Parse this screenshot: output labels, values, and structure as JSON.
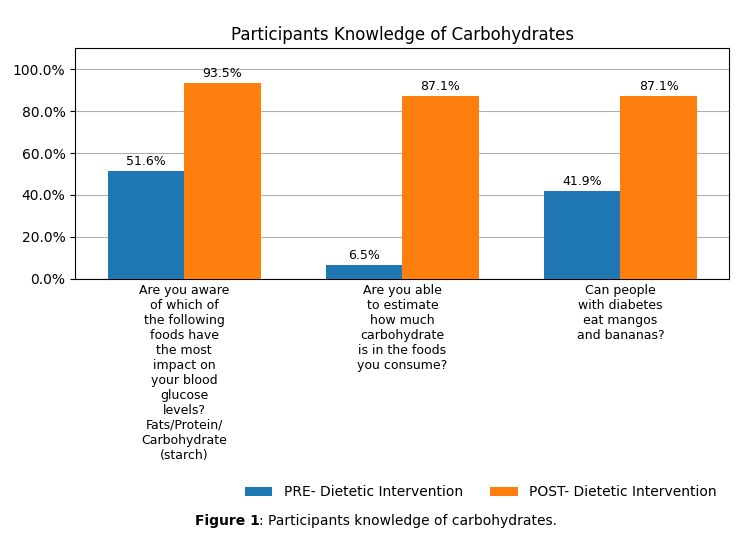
{
  "chart_data": {
    "type": "bar",
    "title": "Participants Knowledge of Carbohydrates",
    "categories": [
      "Are you aware\nof which of\nthe following\nfoods have\nthe most\nimpact on\nyour blood\nglucose\nlevels?\nFats/Protein/\nCarbohydrate\n(starch)",
      "Are you able\nto estimate\nhow much\ncarbohydrate\nis in the foods\nyou consume?",
      "Can people\nwith diabetes\neat mangos\nand bananas?"
    ],
    "series": [
      {
        "name": "PRE- Dietetic Intervention",
        "values": [
          51.6,
          6.5,
          41.9
        ],
        "value_labels": [
          "51.6%",
          "6.5%",
          "41.9%"
        ]
      },
      {
        "name": "POST- Dietetic Intervention",
        "values": [
          93.5,
          87.1,
          87.1
        ],
        "value_labels": [
          "93.5%",
          "87.1%",
          "87.1%"
        ]
      }
    ],
    "ylim": [
      0,
      110
    ],
    "yticks": [
      {
        "value": 0.0,
        "label": "0.0%"
      },
      {
        "value": 20.0,
        "label": "20.0%"
      },
      {
        "value": 40.0,
        "label": "40.0%"
      },
      {
        "value": 60.0,
        "label": "60.0%"
      },
      {
        "value": 80.0,
        "label": "80.0%"
      },
      {
        "value": 100.0,
        "label": "100.0%"
      }
    ],
    "grid": true,
    "legend": "lower right",
    "data_labels": true,
    "annotations": [
      "Figure 1",
      ": Participants knowledge of carbohydrates."
    ]
  }
}
